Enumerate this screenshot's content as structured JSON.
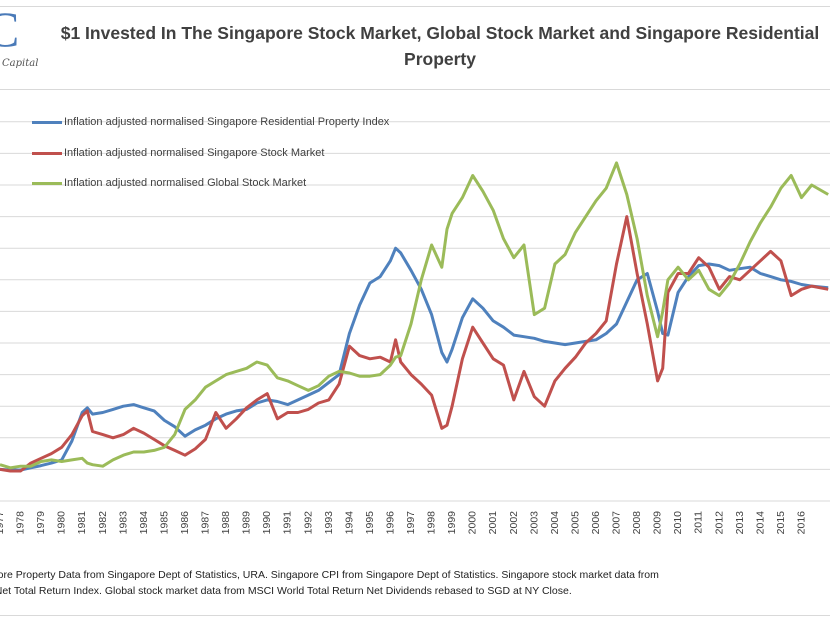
{
  "logo": {
    "mark": "C",
    "subtitle": "Capital"
  },
  "chart_data": {
    "type": "line",
    "title": "$1 Invested In The Singapore Stock Market, Global Stock Market and Singapore Residential Property",
    "xlabel": "",
    "ylabel": "",
    "x_tick_labels": [
      "1977",
      "1978",
      "1979",
      "1980",
      "1981",
      "1982",
      "1983",
      "1984",
      "1985",
      "1986",
      "1987",
      "1988",
      "1989",
      "1990",
      "1991",
      "1992",
      "1993",
      "1994",
      "1995",
      "1996",
      "1997",
      "1998",
      "1999",
      "2000",
      "2001",
      "2002",
      "2003",
      "2004",
      "2005",
      "2006",
      "2007",
      "2008",
      "2009",
      "2010",
      "2011",
      "2012",
      "2013",
      "2014",
      "2015",
      "2016"
    ],
    "xlim": [
      1977,
      2017.3
    ],
    "ylim": [
      0,
      12
    ],
    "y_gridlines": [
      1,
      2,
      3,
      4,
      5,
      6,
      7,
      8,
      9,
      10,
      11,
      12
    ],
    "grid": true,
    "legend_position": "top-left",
    "x": [
      1977.0,
      1977.5,
      1978.0,
      1978.5,
      1979.0,
      1979.5,
      1980.0,
      1980.5,
      1981.0,
      1981.25,
      1981.5,
      1982.0,
      1982.5,
      1983.0,
      1983.5,
      1984.0,
      1984.5,
      1985.0,
      1985.5,
      1986.0,
      1986.5,
      1987.0,
      1987.5,
      1988.0,
      1988.5,
      1989.0,
      1989.5,
      1990.0,
      1990.5,
      1991.0,
      1991.5,
      1992.0,
      1992.5,
      1993.0,
      1993.5,
      1994.0,
      1994.5,
      1995.0,
      1995.5,
      1996.0,
      1996.25,
      1996.5,
      1997.0,
      1997.5,
      1998.0,
      1998.5,
      1998.75,
      1999.0,
      1999.5,
      2000.0,
      2000.5,
      2001.0,
      2001.5,
      2002.0,
      2002.5,
      2003.0,
      2003.5,
      2004.0,
      2004.5,
      2005.0,
      2005.5,
      2006.0,
      2006.5,
      2007.0,
      2007.5,
      2008.0,
      2008.5,
      2009.0,
      2009.25,
      2009.5,
      2010.0,
      2010.5,
      2011.0,
      2011.5,
      2012.0,
      2012.5,
      2013.0,
      2013.5,
      2014.0,
      2014.5,
      2015.0,
      2015.5,
      2016.0,
      2016.5,
      2017.3
    ],
    "series": [
      {
        "name": "Inflation adjusted normalised Singapore Residential Property Index",
        "color": "#4f81bd",
        "values": [
          1.0,
          0.98,
          0.98,
          1.05,
          1.12,
          1.2,
          1.3,
          1.9,
          2.8,
          2.95,
          2.75,
          2.8,
          2.9,
          3.0,
          3.05,
          2.95,
          2.85,
          2.55,
          2.35,
          2.05,
          2.25,
          2.4,
          2.6,
          2.75,
          2.85,
          2.9,
          3.1,
          3.2,
          3.15,
          3.05,
          3.2,
          3.35,
          3.5,
          3.75,
          4.0,
          5.3,
          6.2,
          6.9,
          7.1,
          7.6,
          8.0,
          7.85,
          7.3,
          6.7,
          5.9,
          4.7,
          4.4,
          4.8,
          5.8,
          6.4,
          6.1,
          5.7,
          5.5,
          5.25,
          5.2,
          5.15,
          5.05,
          5.0,
          4.95,
          5.0,
          5.05,
          5.1,
          5.3,
          5.6,
          6.3,
          7.0,
          7.2,
          6.0,
          5.3,
          5.25,
          6.6,
          7.1,
          7.45,
          7.5,
          7.45,
          7.3,
          7.35,
          7.4,
          7.2,
          7.1,
          7.0,
          6.95,
          6.85,
          6.8,
          6.75
        ]
      },
      {
        "name": "Inflation adjusted normalised Singapore Stock Market",
        "color": "#c0504d",
        "values": [
          1.0,
          0.95,
          0.95,
          1.2,
          1.35,
          1.5,
          1.7,
          2.1,
          2.7,
          2.85,
          2.2,
          2.1,
          2.0,
          2.1,
          2.3,
          2.15,
          1.95,
          1.75,
          1.6,
          1.45,
          1.65,
          1.95,
          2.8,
          2.3,
          2.6,
          2.95,
          3.2,
          3.4,
          2.6,
          2.8,
          2.8,
          2.9,
          3.1,
          3.2,
          3.7,
          4.9,
          4.6,
          4.5,
          4.55,
          4.4,
          5.1,
          4.4,
          4.0,
          3.7,
          3.35,
          2.3,
          2.4,
          3.0,
          4.5,
          5.5,
          5.0,
          4.5,
          4.3,
          3.2,
          4.1,
          3.3,
          3.0,
          3.8,
          4.2,
          4.55,
          5.0,
          5.3,
          5.7,
          7.5,
          9.0,
          7.2,
          5.6,
          3.8,
          4.2,
          6.6,
          7.2,
          7.2,
          7.7,
          7.4,
          6.7,
          7.1,
          7.0,
          7.3,
          7.6,
          7.9,
          7.6,
          6.5,
          6.7,
          6.8,
          6.7
        ]
      },
      {
        "name": "Inflation adjusted normalised Global Stock Market",
        "color": "#9bbb59",
        "values": [
          1.15,
          1.05,
          1.1,
          1.1,
          1.25,
          1.3,
          1.25,
          1.3,
          1.35,
          1.2,
          1.15,
          1.1,
          1.3,
          1.45,
          1.55,
          1.55,
          1.6,
          1.7,
          2.1,
          2.9,
          3.2,
          3.6,
          3.8,
          4.0,
          4.1,
          4.2,
          4.4,
          4.3,
          3.9,
          3.8,
          3.65,
          3.5,
          3.65,
          3.95,
          4.1,
          4.05,
          3.95,
          3.95,
          4.0,
          4.3,
          4.55,
          4.6,
          5.6,
          7.0,
          8.1,
          7.4,
          8.6,
          9.1,
          9.6,
          10.3,
          9.8,
          9.2,
          8.3,
          7.7,
          8.1,
          5.9,
          6.1,
          7.5,
          7.8,
          8.5,
          9.0,
          9.5,
          9.9,
          10.7,
          9.7,
          8.3,
          6.5,
          5.2,
          6.0,
          7.0,
          7.4,
          7.0,
          7.3,
          6.7,
          6.5,
          6.9,
          7.5,
          8.2,
          8.8,
          9.3,
          9.9,
          10.3,
          9.6,
          10.0,
          9.7
        ]
      }
    ]
  },
  "footnote": {
    "line1": "apore Property Data from Singapore Dept of Statistics, URA. Singapore CPI from Singapore Dept of Statistics. Singapore stock market data from",
    "line2": "e Net Total Return Index. Global stock market data from MSCI World Total Return Net Dividends rebased to SGD at NY Close."
  }
}
